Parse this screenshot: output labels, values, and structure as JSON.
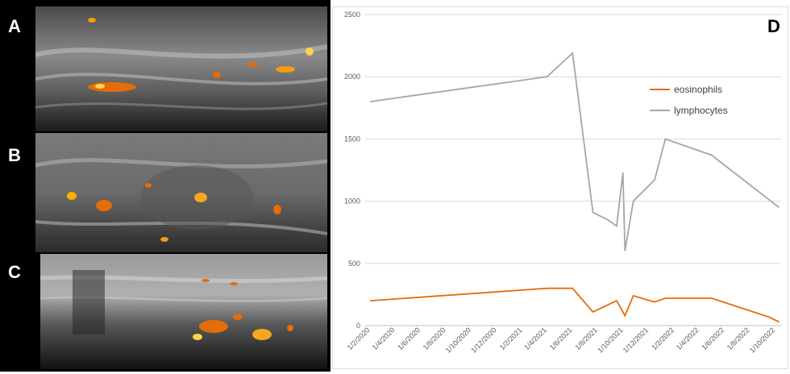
{
  "panels": {
    "a_label": "A",
    "b_label": "B",
    "c_label": "C",
    "d_label": "D"
  },
  "colors": {
    "eosinophils": "#e46c0a",
    "lymphocytes": "#a6a6a6",
    "doppler": "#f5a623"
  },
  "chart_data": {
    "type": "line",
    "title": "",
    "xlabel": "",
    "ylabel": "",
    "ylim": [
      0,
      2500
    ],
    "yticks": [
      0,
      500,
      1000,
      1500,
      2000,
      2500
    ],
    "xticks": [
      "1/2/2020",
      "1/4/2020",
      "1/6/2020",
      "1/8/2020",
      "1/10/2020",
      "1/12/2020",
      "1/2/2021",
      "1/4/2021",
      "1/6/2021",
      "1/8/2021",
      "1/10/2021",
      "1/12/2021",
      "1/2/2022",
      "1/4/2022",
      "1/6/2022",
      "1/8/2022",
      "1/10/2022"
    ],
    "grid": true,
    "legend_position": "right",
    "series": [
      {
        "name": "eosinophils",
        "points": [
          {
            "x": "2020-02-01",
            "y": 200
          },
          {
            "x": "2021-04-01",
            "y": 300
          },
          {
            "x": "2021-06-01",
            "y": 300
          },
          {
            "x": "2021-07-20",
            "y": 110
          },
          {
            "x": "2021-09-15",
            "y": 200
          },
          {
            "x": "2021-10-05",
            "y": 80
          },
          {
            "x": "2021-10-25",
            "y": 240
          },
          {
            "x": "2021-12-15",
            "y": 190
          },
          {
            "x": "2022-01-10",
            "y": 220
          },
          {
            "x": "2022-05-01",
            "y": 220
          },
          {
            "x": "2022-09-15",
            "y": 70
          },
          {
            "x": "2022-10-10",
            "y": 30
          }
        ]
      },
      {
        "name": "lymphocytes",
        "points": [
          {
            "x": "2020-02-01",
            "y": 1800
          },
          {
            "x": "2021-04-01",
            "y": 2000
          },
          {
            "x": "2021-06-01",
            "y": 2190
          },
          {
            "x": "2021-07-20",
            "y": 910
          },
          {
            "x": "2021-08-25",
            "y": 850
          },
          {
            "x": "2021-09-15",
            "y": 800
          },
          {
            "x": "2021-09-30",
            "y": 1230
          },
          {
            "x": "2021-10-05",
            "y": 600
          },
          {
            "x": "2021-10-25",
            "y": 1000
          },
          {
            "x": "2021-12-15",
            "y": 1170
          },
          {
            "x": "2022-01-10",
            "y": 1500
          },
          {
            "x": "2022-05-01",
            "y": 1370
          },
          {
            "x": "2022-10-10",
            "y": 950
          }
        ]
      }
    ]
  }
}
